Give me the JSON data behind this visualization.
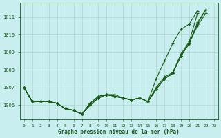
{
  "title": "Graphe pression niveau de la mer (hPa)",
  "bg_color": "#c8eef0",
  "grid_color": "#b0d8c8",
  "line_color": "#1a5c1a",
  "xlim": [
    0,
    23
  ],
  "ylim": [
    1005.2,
    1011.8
  ],
  "yticks": [
    1006,
    1007,
    1008,
    1009,
    1010,
    1011
  ],
  "xticks": [
    0,
    1,
    2,
    3,
    4,
    5,
    6,
    7,
    8,
    9,
    10,
    11,
    12,
    13,
    14,
    15,
    16,
    17,
    18,
    19,
    20,
    21,
    22,
    23
  ],
  "series": [
    [
      1007.0,
      1006.2,
      1006.2,
      1006.2,
      1006.1,
      1005.8,
      1005.7,
      1005.5,
      1006.0,
      1006.4,
      1006.6,
      1006.6,
      1006.4,
      1006.3,
      1006.4,
      1006.2,
      1006.9,
      1007.5,
      1007.8,
      1008.8,
      1009.5,
      1010.7,
      1011.4,
      null
    ],
    [
      1007.0,
      1006.2,
      1006.2,
      1006.2,
      1006.1,
      1005.8,
      1005.7,
      1005.5,
      1006.0,
      1006.4,
      1006.6,
      1006.5,
      1006.4,
      1006.3,
      1006.4,
      1006.2,
      1006.9,
      1007.5,
      1007.8,
      1008.8,
      1009.5,
      1010.6,
      1011.4,
      null
    ],
    [
      1007.0,
      1006.2,
      1006.2,
      1006.2,
      1006.1,
      1005.8,
      1005.7,
      1005.5,
      1006.0,
      1006.4,
      1006.6,
      1006.5,
      1006.4,
      1006.3,
      1006.4,
      1006.2,
      1006.9,
      1007.5,
      1007.8,
      1008.8,
      1009.5,
      1010.5,
      1011.2,
      null
    ],
    [
      1007.0,
      1006.2,
      1006.2,
      1006.2,
      1006.1,
      1005.8,
      1005.7,
      1005.5,
      1006.1,
      1006.5,
      1006.6,
      1006.5,
      1006.4,
      1006.3,
      1006.4,
      1006.2,
      1007.0,
      1007.6,
      1007.85,
      1008.9,
      1009.6,
      1011.2,
      null,
      null
    ],
    [
      1007.0,
      1006.2,
      1006.2,
      1006.2,
      1006.1,
      1005.8,
      1005.7,
      1005.5,
      1006.1,
      1006.5,
      1006.6,
      1006.5,
      1006.4,
      1006.3,
      1006.4,
      1006.2,
      1007.5,
      1008.5,
      1009.5,
      1010.3,
      1010.6,
      1011.35,
      null,
      null
    ]
  ]
}
